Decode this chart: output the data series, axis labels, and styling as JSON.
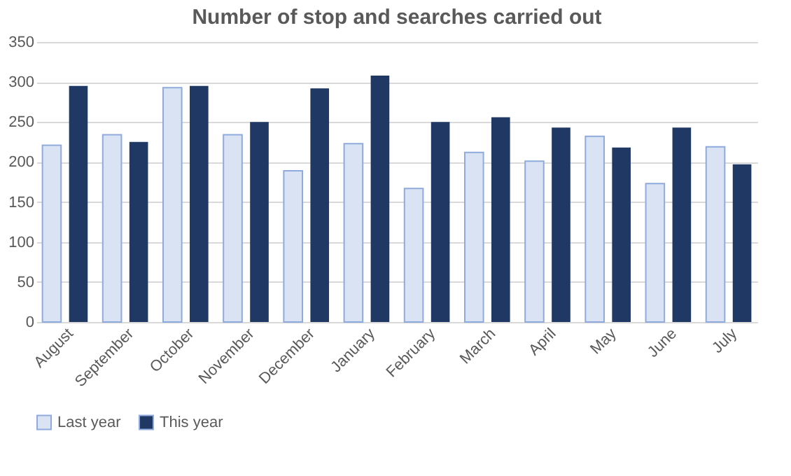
{
  "chart_data": {
    "type": "bar",
    "title": "Number of stop and searches carried out",
    "categories": [
      "August",
      "September",
      "October",
      "November",
      "December",
      "January",
      "February",
      "March",
      "April",
      "May",
      "June",
      "July"
    ],
    "series": [
      {
        "name": "Last year",
        "color": "#dae3f3",
        "values": [
          221,
          234,
          293,
          234,
          189,
          223,
          167,
          212,
          201,
          232,
          173,
          219
        ]
      },
      {
        "name": "This year",
        "color": "#1f3864",
        "values": [
          295,
          225,
          295,
          250,
          292,
          308,
          250,
          256,
          243,
          218,
          243,
          197
        ]
      }
    ],
    "ylim": [
      0,
      350
    ],
    "yticks": [
      0,
      50,
      100,
      150,
      200,
      250,
      300,
      350
    ],
    "grid": "y",
    "legend": "bottom"
  }
}
